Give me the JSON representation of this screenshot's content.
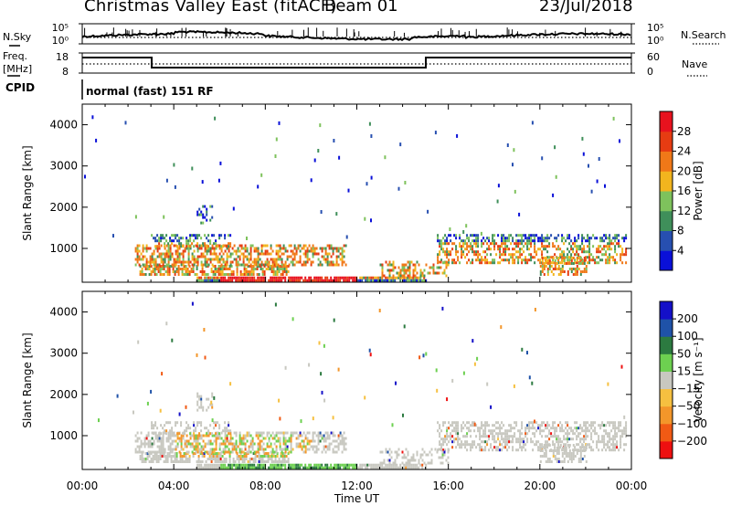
{
  "header": {
    "station": "Christmas Valley East (fitACF)",
    "beam": "Beam 01",
    "date": "23/Jul/2018"
  },
  "side_labels": {
    "nsky": "N.Sky",
    "freq_line1": "Freq.",
    "freq_line2": "[MHz]",
    "cpid": "CPID",
    "nsearch": "N.Search",
    "nave": "Nave"
  },
  "strip_scales": {
    "nsky_left": [
      "10^5",
      "10^0"
    ],
    "nsky_right": [
      "10^5",
      "10^0"
    ],
    "freq_left": [
      "18",
      "8"
    ],
    "freq_right": [
      "60",
      "0"
    ]
  },
  "cpid_text": "normal (fast) 151 RF",
  "colors": {
    "power": [
      "#0a10d8",
      "#274fb0",
      "#3f8f5a",
      "#7ec25c",
      "#f2b51e",
      "#f07818",
      "#e63c12",
      "#e8121e"
    ],
    "velocity": [
      "#ee1010",
      "#f15a14",
      "#f3962a",
      "#f6c040",
      "#c8c8c0",
      "#6dd050",
      "#2c7a40",
      "#1f52a8",
      "#1410c8"
    ]
  },
  "chart_data": [
    {
      "type": "heatmap",
      "name": "power-panel",
      "title": "",
      "xlabel": "Time UT",
      "ylabel": "Slant Range [km]",
      "xlim": [
        "00:00",
        "24:00"
      ],
      "ylim": [
        180,
        4500
      ],
      "x_ticks": [
        "00:00",
        "04:00",
        "08:00",
        "12:00",
        "16:00",
        "20:00",
        "00:00"
      ],
      "y_ticks": [
        "1000",
        "2000",
        "3000",
        "4000"
      ],
      "colorbar": {
        "label": "Power [dB]",
        "ticks": [
          "4",
          "8",
          "12",
          "16",
          "20",
          "24",
          "28"
        ],
        "range": [
          0,
          32
        ]
      }
    },
    {
      "type": "heatmap",
      "name": "velocity-panel",
      "title": "",
      "xlabel": "Time UT",
      "ylabel": "Slant Range [km]",
      "xlim": [
        "00:00",
        "24:00"
      ],
      "ylim": [
        180,
        4500
      ],
      "x_ticks": [
        "00:00",
        "04:00",
        "08:00",
        "12:00",
        "16:00",
        "20:00",
        "00:00"
      ],
      "y_ticks": [
        "1000",
        "2000",
        "3000",
        "4000"
      ],
      "colorbar": {
        "label": "Velocity [m s⁻¹]",
        "ticks": [
          "200",
          "100",
          "50",
          "15",
          "−15",
          "−50",
          "−100",
          "−200"
        ]
      }
    }
  ]
}
